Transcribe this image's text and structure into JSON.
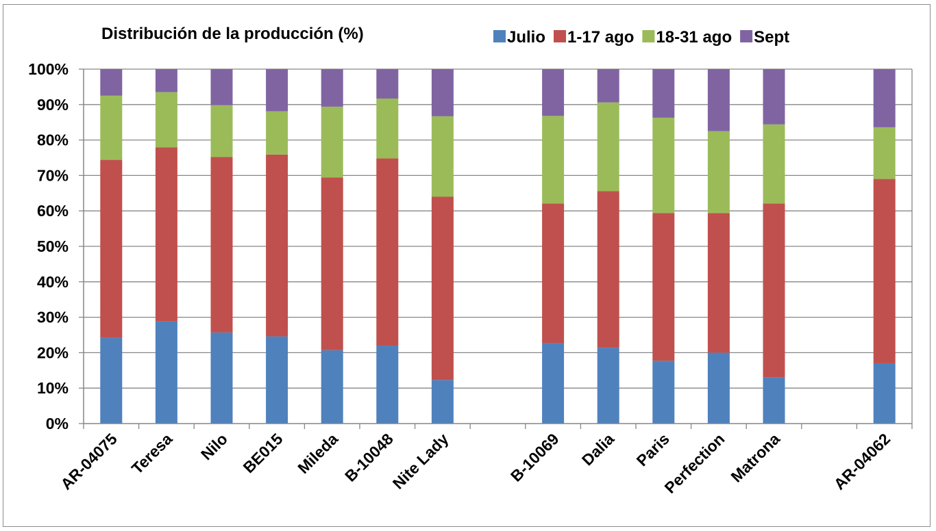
{
  "chart_data": {
    "type": "bar",
    "stacked": true,
    "title": "Distribución de la producción (%)",
    "categories": [
      "AR-04075",
      "Teresa",
      "Nilo",
      "BE015",
      "Mileda",
      "B-10048",
      "Nite Lady",
      "",
      "B-10069",
      "Dalia",
      "Paris",
      "Perfection",
      "Matrona",
      "",
      "AR-04062"
    ],
    "series": [
      {
        "name": "Julio",
        "color": "#4f81bd",
        "values": [
          24.2,
          28.8,
          25.7,
          24.6,
          20.7,
          22.0,
          12.3,
          null,
          22.7,
          21.4,
          17.7,
          20.0,
          13.1,
          null,
          17.0
        ]
      },
      {
        "name": "1-17 ago",
        "color": "#c0504d",
        "values": [
          50.2,
          49.1,
          49.5,
          51.3,
          48.7,
          52.8,
          51.7,
          null,
          39.4,
          44.2,
          41.7,
          39.4,
          49.0,
          null,
          52.0
        ]
      },
      {
        "name": "18-31 ago",
        "color": "#9bbb59",
        "values": [
          18.1,
          15.6,
          14.6,
          12.2,
          20.0,
          16.9,
          22.7,
          null,
          24.7,
          25.0,
          26.9,
          23.1,
          22.3,
          null,
          14.6
        ]
      },
      {
        "name": "Sept",
        "color": "#8064a2",
        "values": [
          7.5,
          6.5,
          10.2,
          11.9,
          10.6,
          8.3,
          13.3,
          null,
          13.2,
          9.4,
          13.7,
          17.5,
          15.6,
          null,
          16.4
        ]
      }
    ],
    "ylim": [
      0,
      100
    ],
    "yticks": [
      "0%",
      "10%",
      "20%",
      "30%",
      "40%",
      "50%",
      "60%",
      "70%",
      "80%",
      "90%",
      "100%"
    ],
    "grid": true,
    "legend_position": "top-right",
    "xlabel": "",
    "ylabel": ""
  }
}
